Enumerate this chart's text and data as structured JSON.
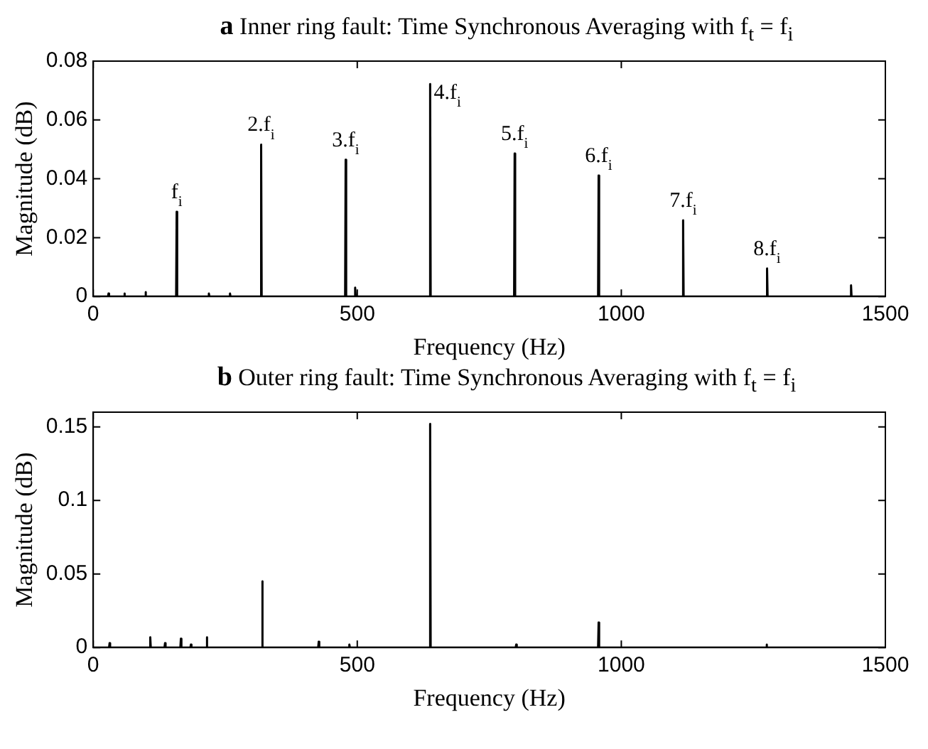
{
  "chart_data": [
    {
      "type": "line",
      "title": "a Inner ring fault: Time Synchronous Averaging with f$_{t}$ = f$_{i}$",
      "xlabel": "Frequency (Hz)",
      "ylabel": "Magnitude (dB)",
      "marker": "none",
      "legend": false,
      "xlim": [
        0,
        1500
      ],
      "xticks": [
        0,
        500,
        1000,
        1500
      ],
      "ylim": [
        0,
        0.08
      ],
      "yticks": [
        0,
        0.02,
        0.04,
        0.06,
        0.08
      ],
      "series": [
        {
          "color": "#000000",
          "x": [
            0,
            28,
            29,
            30,
            58,
            59,
            60,
            98,
            99,
            100,
            157,
            158,
            159,
            218,
            219,
            220,
            258,
            259,
            260,
            317,
            318,
            319,
            477,
            478,
            479,
            495,
            496,
            497,
            637,
            638,
            639,
            797,
            798,
            799,
            956,
            957,
            958,
            1116,
            1117,
            1118,
            1275,
            1276,
            1277,
            1434,
            1435,
            1436,
            1500
          ],
          "values": [
            0,
            0,
            0.001,
            0,
            0,
            0.001,
            0,
            0,
            0.0015,
            0,
            0,
            0.0288,
            0,
            0,
            0.001,
            0,
            0,
            0.001,
            0,
            0,
            0.0516,
            0,
            0,
            0.0465,
            0,
            0,
            0.003,
            0,
            0,
            0.0722,
            0,
            0,
            0.0486,
            0,
            0,
            0.0411,
            0,
            0,
            0.0259,
            0,
            0,
            0.0095,
            0,
            0,
            0.0038,
            0,
            0
          ]
        }
      ],
      "annotations": [
        {
          "text": "f$_{i}$",
          "x": 158,
          "y": 0.0288
        },
        {
          "text": "2.f$_{i}$",
          "x": 318,
          "y": 0.0516
        },
        {
          "text": "3.f$_{i}$",
          "x": 478,
          "y": 0.0465
        },
        {
          "text": "4.f$_{i}$",
          "x": 638,
          "y": 0.0722
        },
        {
          "text": "5.f$_{i}$",
          "x": 798,
          "y": 0.0486
        },
        {
          "text": "6.f$_{i}$",
          "x": 957,
          "y": 0.0411
        },
        {
          "text": "7.f$_{i}$",
          "x": 1117,
          "y": 0.0259
        },
        {
          "text": "8.f$_{i}$",
          "x": 1276,
          "y": 0.0095
        }
      ]
    },
    {
      "type": "line",
      "title": "b Outer ring fault: Time Synchronous Averaging with f$_{t}$ = f$_{i}$",
      "xlabel": "Frequency (Hz)",
      "ylabel": "Magnitude (dB)",
      "marker": "none",
      "legend": false,
      "xlim": [
        0,
        1500
      ],
      "xticks": [
        0,
        500,
        1000,
        1500
      ],
      "ylim": [
        0,
        0.16
      ],
      "yticks": [
        0,
        0.05,
        0.1,
        0.15
      ],
      "series": [
        {
          "color": "#000000",
          "x": [
            0,
            30,
            31,
            32,
            107,
            108,
            109,
            135,
            136,
            137,
            165,
            166,
            167,
            184,
            185,
            186,
            214,
            215,
            216,
            319,
            320,
            321,
            426,
            427,
            428,
            484,
            485,
            486,
            637,
            638,
            639,
            800,
            801,
            802,
            956,
            957,
            958,
            1274,
            1275,
            1276,
            1500
          ],
          "values": [
            0,
            0,
            0.003,
            0,
            0,
            0.007,
            0,
            0,
            0.003,
            0,
            0,
            0.006,
            0,
            0,
            0.002,
            0,
            0,
            0.007,
            0,
            0,
            0.045,
            0,
            0,
            0.004,
            0,
            0,
            0.002,
            0,
            0,
            0.152,
            0,
            0,
            0.002,
            0,
            0,
            0.017,
            0,
            0,
            0.002,
            0,
            0
          ]
        }
      ]
    }
  ]
}
